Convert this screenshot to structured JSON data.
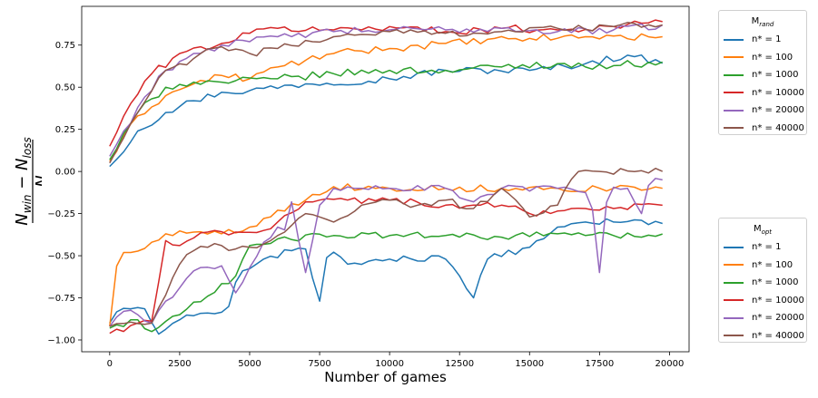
{
  "chart_data": {
    "type": "line",
    "xlabel": "Number of games",
    "ylabel": "(N_win − N_loss) / N",
    "xlim": [
      -1000,
      20700
    ],
    "ylim": [
      -1.07,
      0.98
    ],
    "x_ticks": [
      0,
      2500,
      5000,
      7500,
      10000,
      12500,
      15000,
      17500,
      20000
    ],
    "x_tick_labels": [
      "0",
      "2500",
      "5000",
      "7500",
      "10000",
      "12500",
      "15000",
      "17500",
      "20000"
    ],
    "y_ticks": [
      -1.0,
      -0.75,
      -0.5,
      -0.25,
      0.0,
      0.25,
      0.5,
      0.75
    ],
    "y_tick_labels": [
      "−1.00",
      "−0.75",
      "−0.50",
      "−0.25",
      "0.00",
      "0.25",
      "0.50",
      "0.75"
    ],
    "x_step": 250,
    "n_points": 80,
    "grid": false,
    "legends": [
      {
        "title_main": "M",
        "title_sub": "rand",
        "placement": "outside-top-right"
      },
      {
        "title_main": "M",
        "title_sub": "opt",
        "placement": "outside-bottom-right"
      }
    ],
    "series_labels": [
      "n* = 1",
      "n* = 100",
      "n* = 1000",
      "n* = 10000",
      "n* = 20000",
      "n* = 40000"
    ],
    "colors": [
      "#1f77b4",
      "#ff7f0e",
      "#2ca02c",
      "#d62728",
      "#9467bd",
      "#8c564b"
    ],
    "series": [
      {
        "name": "M_rand n* = 1",
        "group": "rand",
        "color": "#1f77b4",
        "keypoints": [
          [
            0,
            0.03
          ],
          [
            1000,
            0.24
          ],
          [
            2000,
            0.35
          ],
          [
            3000,
            0.42
          ],
          [
            4000,
            0.47
          ],
          [
            5000,
            0.48
          ],
          [
            7000,
            0.52
          ],
          [
            10000,
            0.55
          ],
          [
            12000,
            0.6
          ],
          [
            15000,
            0.6
          ],
          [
            17000,
            0.64
          ],
          [
            18500,
            0.69
          ],
          [
            19800,
            0.64
          ]
        ]
      },
      {
        "name": "M_rand n* = 100",
        "group": "rand",
        "color": "#ff7f0e",
        "keypoints": [
          [
            0,
            0.06
          ],
          [
            1000,
            0.33
          ],
          [
            2000,
            0.45
          ],
          [
            3000,
            0.52
          ],
          [
            4000,
            0.57
          ],
          [
            5000,
            0.55
          ],
          [
            6000,
            0.62
          ],
          [
            7000,
            0.66
          ],
          [
            8000,
            0.7
          ],
          [
            10000,
            0.73
          ],
          [
            12000,
            0.76
          ],
          [
            15000,
            0.79
          ],
          [
            17000,
            0.8
          ],
          [
            19800,
            0.8
          ]
        ]
      },
      {
        "name": "M_rand n* = 1000",
        "group": "rand",
        "color": "#2ca02c",
        "keypoints": [
          [
            0,
            0.07
          ],
          [
            1000,
            0.35
          ],
          [
            2000,
            0.5
          ],
          [
            3000,
            0.53
          ],
          [
            4000,
            0.53
          ],
          [
            6000,
            0.55
          ],
          [
            8000,
            0.58
          ],
          [
            10000,
            0.6
          ],
          [
            12000,
            0.6
          ],
          [
            14000,
            0.62
          ],
          [
            16000,
            0.64
          ],
          [
            17000,
            0.62
          ],
          [
            19800,
            0.65
          ]
        ]
      },
      {
        "name": "M_rand n* = 10000",
        "group": "rand",
        "color": "#d62728",
        "keypoints": [
          [
            0,
            0.15
          ],
          [
            800,
            0.42
          ],
          [
            1500,
            0.58
          ],
          [
            2500,
            0.7
          ],
          [
            4000,
            0.76
          ],
          [
            5000,
            0.82
          ],
          [
            6000,
            0.85
          ],
          [
            8000,
            0.84
          ],
          [
            10000,
            0.86
          ],
          [
            12000,
            0.83
          ],
          [
            14000,
            0.85
          ],
          [
            16000,
            0.84
          ],
          [
            18000,
            0.86
          ],
          [
            19800,
            0.89
          ]
        ]
      },
      {
        "name": "M_rand n* = 20000",
        "group": "rand",
        "color": "#9467bd",
        "keypoints": [
          [
            0,
            0.09
          ],
          [
            1000,
            0.38
          ],
          [
            2000,
            0.6
          ],
          [
            3000,
            0.7
          ],
          [
            4000,
            0.75
          ],
          [
            5000,
            0.77
          ],
          [
            6000,
            0.8
          ],
          [
            8000,
            0.83
          ],
          [
            10000,
            0.84
          ],
          [
            12000,
            0.84
          ],
          [
            14000,
            0.85
          ],
          [
            16000,
            0.83
          ],
          [
            18000,
            0.84
          ],
          [
            19800,
            0.87
          ]
        ]
      },
      {
        "name": "M_rand n* = 40000",
        "group": "rand",
        "color": "#8c564b",
        "keypoints": [
          [
            0,
            0.05
          ],
          [
            1000,
            0.35
          ],
          [
            2000,
            0.6
          ],
          [
            3000,
            0.67
          ],
          [
            4000,
            0.74
          ],
          [
            5000,
            0.7
          ],
          [
            6000,
            0.73
          ],
          [
            8000,
            0.8
          ],
          [
            10000,
            0.83
          ],
          [
            12000,
            0.82
          ],
          [
            14000,
            0.83
          ],
          [
            16000,
            0.85
          ],
          [
            18000,
            0.86
          ],
          [
            19800,
            0.87
          ]
        ]
      },
      {
        "name": "M_opt n* = 1",
        "group": "opt",
        "color": "#1f77b4",
        "keypoints": [
          [
            0,
            -0.9
          ],
          [
            300,
            -0.82
          ],
          [
            1200,
            -0.8
          ],
          [
            1800,
            -0.98
          ],
          [
            2500,
            -0.88
          ],
          [
            3500,
            -0.84
          ],
          [
            4200,
            -0.83
          ],
          [
            4600,
            -0.6
          ],
          [
            5500,
            -0.52
          ],
          [
            6500,
            -0.47
          ],
          [
            7000,
            -0.46
          ],
          [
            7500,
            -0.77
          ],
          [
            7800,
            -0.46
          ],
          [
            8500,
            -0.55
          ],
          [
            10000,
            -0.52
          ],
          [
            12000,
            -0.52
          ],
          [
            13000,
            -0.75
          ],
          [
            13500,
            -0.52
          ],
          [
            15000,
            -0.45
          ],
          [
            16000,
            -0.33
          ],
          [
            17000,
            -0.3
          ],
          [
            18000,
            -0.3
          ],
          [
            19000,
            -0.29
          ],
          [
            19800,
            -0.31
          ]
        ]
      },
      {
        "name": "M_opt n* = 100",
        "group": "opt",
        "color": "#ff7f0e",
        "keypoints": [
          [
            0,
            -0.92
          ],
          [
            300,
            -0.49
          ],
          [
            800,
            -0.48
          ],
          [
            1500,
            -0.42
          ],
          [
            2000,
            -0.37
          ],
          [
            3000,
            -0.36
          ],
          [
            4000,
            -0.37
          ],
          [
            5000,
            -0.33
          ],
          [
            6000,
            -0.23
          ],
          [
            7000,
            -0.17
          ],
          [
            8000,
            -0.09
          ],
          [
            10000,
            -0.1
          ],
          [
            12000,
            -0.1
          ],
          [
            14000,
            -0.1
          ],
          [
            16000,
            -0.1
          ],
          [
            18000,
            -0.1
          ],
          [
            19800,
            -0.1
          ]
        ]
      },
      {
        "name": "M_opt n* = 1000",
        "group": "opt",
        "color": "#2ca02c",
        "keypoints": [
          [
            0,
            -0.93
          ],
          [
            1000,
            -0.88
          ],
          [
            1500,
            -0.95
          ],
          [
            2500,
            -0.85
          ],
          [
            3500,
            -0.74
          ],
          [
            4500,
            -0.62
          ],
          [
            5000,
            -0.44
          ],
          [
            6000,
            -0.4
          ],
          [
            8000,
            -0.38
          ],
          [
            10000,
            -0.38
          ],
          [
            12000,
            -0.38
          ],
          [
            14000,
            -0.39
          ],
          [
            16000,
            -0.37
          ],
          [
            18000,
            -0.38
          ],
          [
            19000,
            -0.39
          ],
          [
            19800,
            -0.37
          ]
        ]
      },
      {
        "name": "M_opt n* = 10000",
        "group": "opt",
        "color": "#d62728",
        "keypoints": [
          [
            0,
            -0.96
          ],
          [
            1000,
            -0.9
          ],
          [
            1700,
            -0.9
          ],
          [
            1800,
            -0.41
          ],
          [
            2500,
            -0.44
          ],
          [
            3500,
            -0.36
          ],
          [
            4500,
            -0.36
          ],
          [
            5500,
            -0.35
          ],
          [
            6000,
            -0.3
          ],
          [
            7000,
            -0.18
          ],
          [
            7500,
            -0.17
          ],
          [
            8500,
            -0.17
          ],
          [
            10000,
            -0.17
          ],
          [
            12000,
            -0.2
          ],
          [
            13000,
            -0.2
          ],
          [
            14000,
            -0.2
          ],
          [
            15000,
            -0.25
          ],
          [
            16500,
            -0.22
          ],
          [
            17000,
            -0.22
          ],
          [
            18000,
            -0.22
          ],
          [
            19800,
            -0.2
          ]
        ]
      },
      {
        "name": "M_opt n* = 20000",
        "group": "opt",
        "color": "#9467bd",
        "keypoints": [
          [
            0,
            -0.92
          ],
          [
            500,
            -0.83
          ],
          [
            1000,
            -0.85
          ],
          [
            1500,
            -0.9
          ],
          [
            2000,
            -0.77
          ],
          [
            2500,
            -0.69
          ],
          [
            3000,
            -0.59
          ],
          [
            4000,
            -0.56
          ],
          [
            4500,
            -0.72
          ],
          [
            5000,
            -0.57
          ],
          [
            5500,
            -0.42
          ],
          [
            6000,
            -0.33
          ],
          [
            6300,
            -0.35
          ],
          [
            6500,
            -0.18
          ],
          [
            7000,
            -0.6
          ],
          [
            7500,
            -0.2
          ],
          [
            8000,
            -0.1
          ],
          [
            9000,
            -0.1
          ],
          [
            10000,
            -0.1
          ],
          [
            12000,
            -0.1
          ],
          [
            13000,
            -0.18
          ],
          [
            14000,
            -0.1
          ],
          [
            16000,
            -0.1
          ],
          [
            17200,
            -0.15
          ],
          [
            17500,
            -0.6
          ],
          [
            17800,
            -0.1
          ],
          [
            18500,
            -0.1
          ],
          [
            19000,
            -0.25
          ],
          [
            19300,
            -0.05
          ],
          [
            19800,
            -0.05
          ]
        ]
      },
      {
        "name": "M_opt n* = 40000",
        "group": "opt",
        "color": "#8c564b",
        "keypoints": [
          [
            0,
            -0.92
          ],
          [
            1500,
            -0.9
          ],
          [
            2500,
            -0.55
          ],
          [
            3000,
            -0.47
          ],
          [
            4000,
            -0.44
          ],
          [
            4500,
            -0.46
          ],
          [
            5000,
            -0.45
          ],
          [
            5500,
            -0.43
          ],
          [
            6000,
            -0.38
          ],
          [
            6500,
            -0.32
          ],
          [
            7000,
            -0.25
          ],
          [
            7500,
            -0.27
          ],
          [
            8000,
            -0.3
          ],
          [
            9000,
            -0.2
          ],
          [
            10000,
            -0.17
          ],
          [
            11000,
            -0.2
          ],
          [
            12000,
            -0.17
          ],
          [
            13000,
            -0.22
          ],
          [
            14000,
            -0.1
          ],
          [
            15000,
            -0.27
          ],
          [
            16000,
            -0.2
          ],
          [
            16700,
            0.0
          ],
          [
            17500,
            0.0
          ],
          [
            19800,
            0.0
          ]
        ]
      }
    ]
  }
}
